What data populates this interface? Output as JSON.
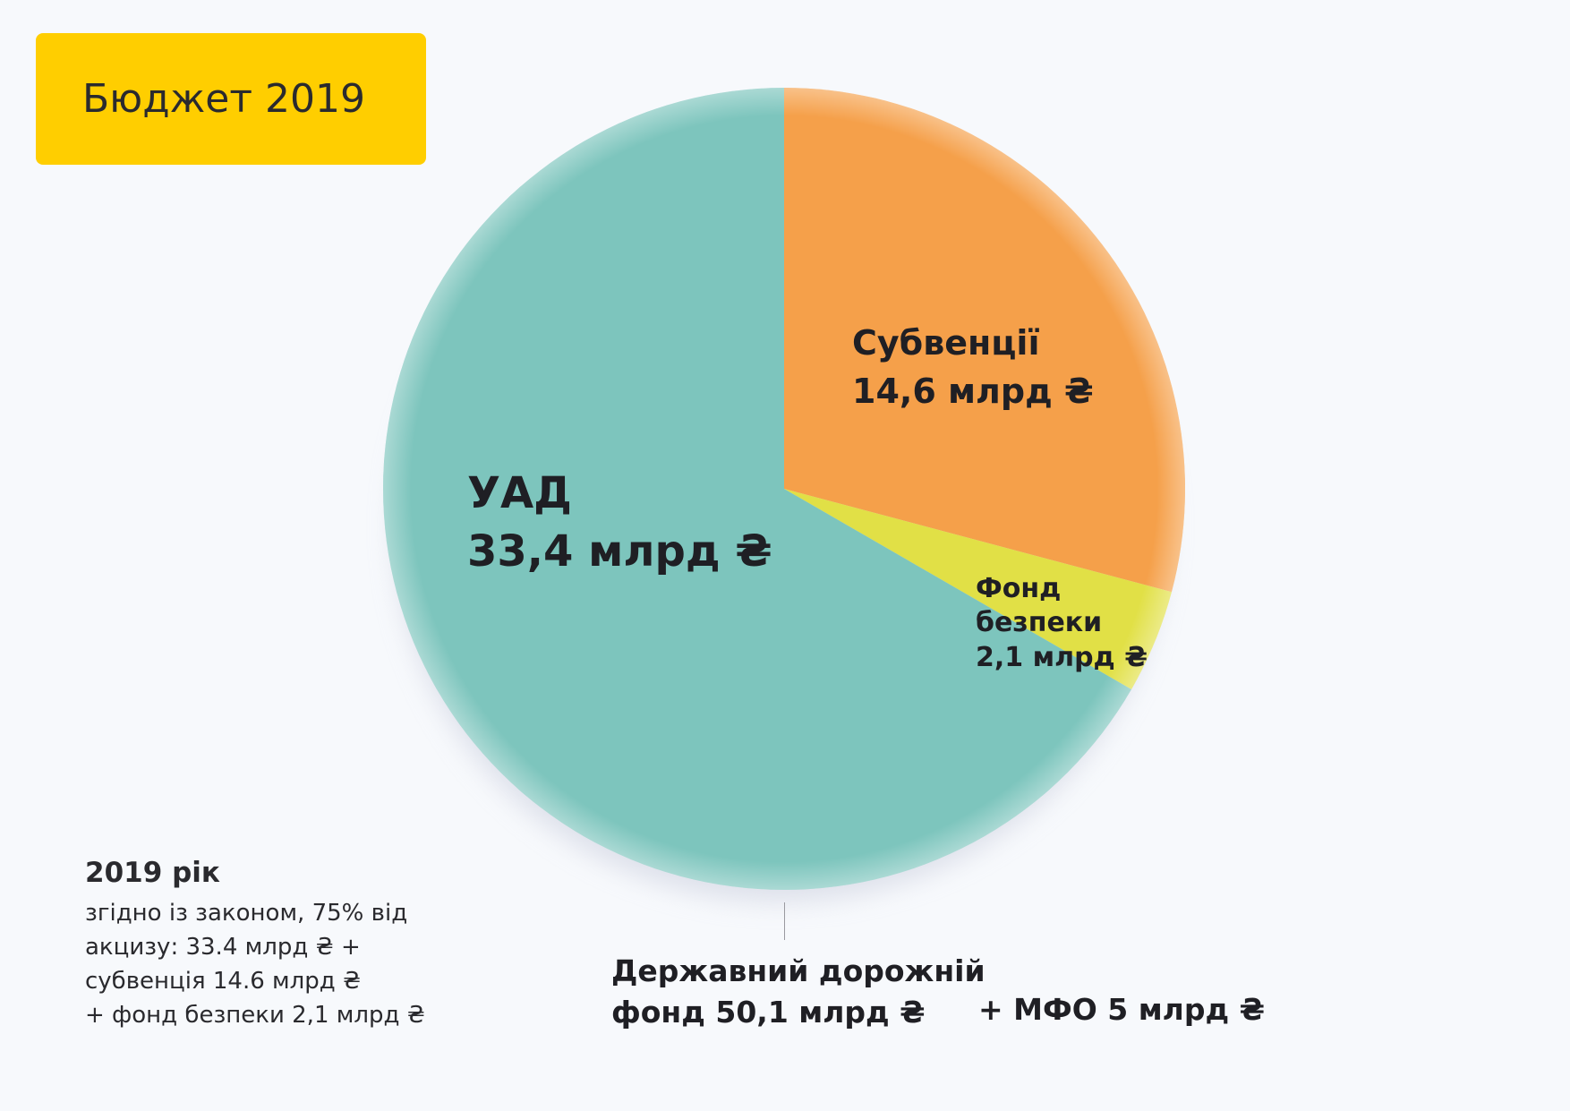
{
  "title": "Бюджет 2019",
  "chart_data": {
    "type": "pie",
    "title": "Бюджет 2019",
    "unit": "млрд ₴",
    "slices": [
      {
        "name": "Субвенції",
        "value": 14.6,
        "value_label": "14,6 млрд ₴",
        "color": "#F5A04A"
      },
      {
        "name": "Фонд безпеки",
        "value": 2.1,
        "value_label": "2,1 млрд ₴",
        "color": "#E1E046"
      },
      {
        "name": "УАД",
        "value": 33.4,
        "value_label": "33,4 млрд ₴",
        "color": "#7DC5BD"
      }
    ],
    "start_angle_deg": 0,
    "direction": "clockwise"
  },
  "labels": {
    "uad": {
      "name": "УАД",
      "value": "33,4 млрд ₴"
    },
    "sub": {
      "name": "Субвенції",
      "value": "14,6 млрд ₴"
    },
    "fond": {
      "line1": "Фонд",
      "line2": "безпеки",
      "value": "2,1 млрд ₴"
    }
  },
  "total": {
    "line1": "Державний дорожній",
    "line2": "фонд 50,1 млрд ₴",
    "mfo": "+  МФО 5 млрд ₴"
  },
  "note": {
    "heading": "2019 рік",
    "lines": [
      "згідно із законом, 75% від",
      "акцизу: 33.4 млрд ₴ +",
      "субвенція 14.6 млрд ₴",
      "+ фонд безпеки 2,1  млрд ₴"
    ]
  }
}
